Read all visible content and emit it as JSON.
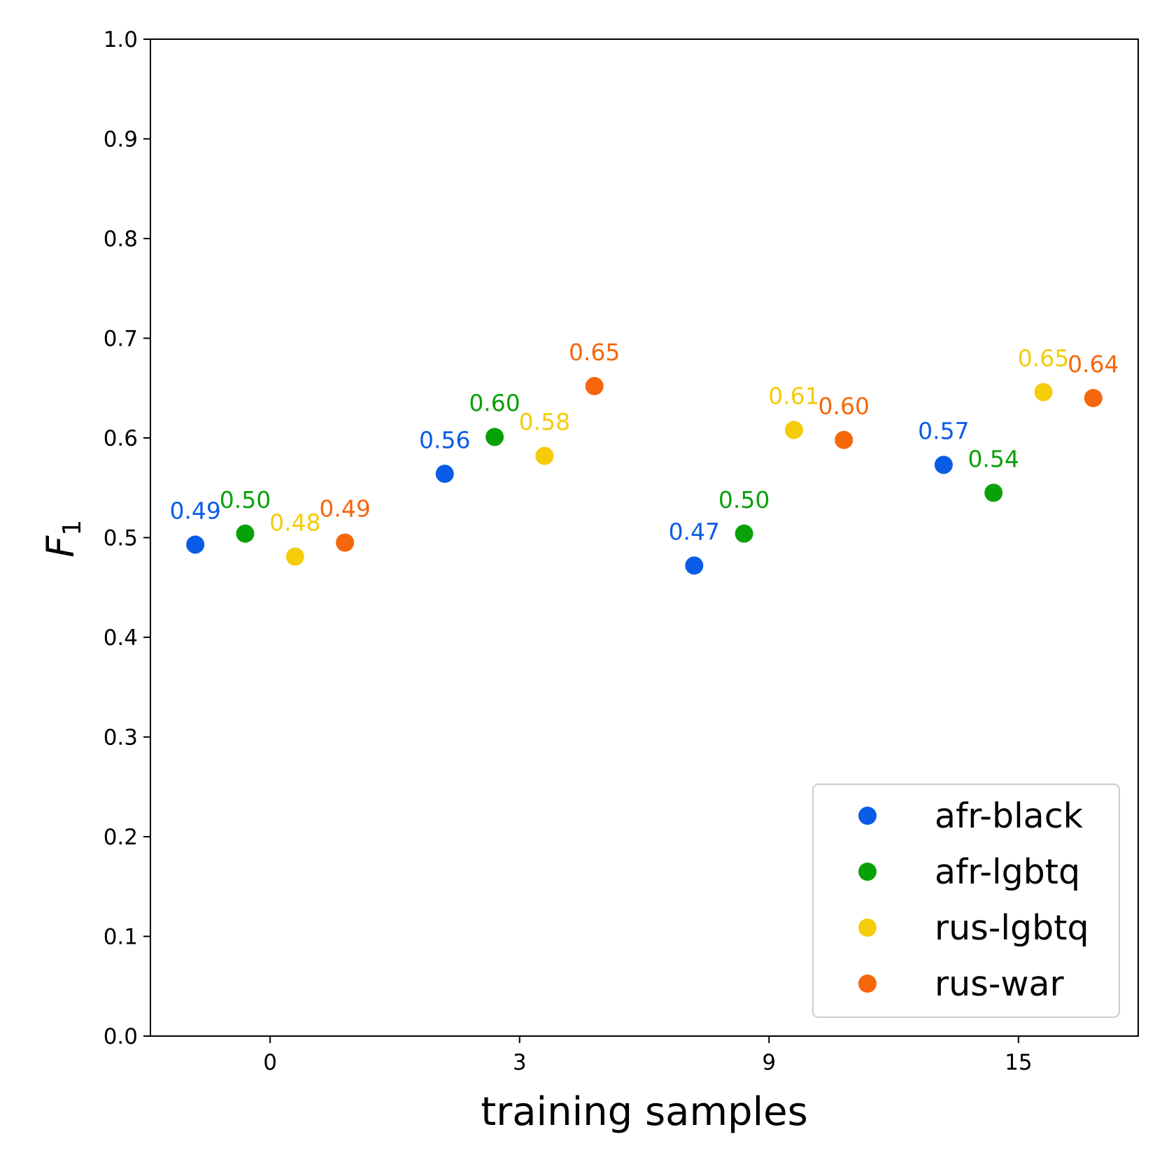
{
  "chart_data": {
    "type": "scatter",
    "title": "",
    "xlabel": "training samples",
    "ylabel": {
      "main": "F",
      "subscript": "1"
    },
    "ylim": [
      0.0,
      1.0
    ],
    "yticks": [
      "0.0",
      "0.1",
      "0.2",
      "0.3",
      "0.4",
      "0.5",
      "0.6",
      "0.7",
      "0.8",
      "0.9",
      "1.0"
    ],
    "categories": [
      "0",
      "3",
      "9",
      "15"
    ],
    "grid": false,
    "legend_position": "bottom-right",
    "series": [
      {
        "name": "afr-black",
        "color": "#0a5ce6",
        "values": [
          0.493,
          0.564,
          0.472,
          0.573
        ],
        "labels": [
          "0.49",
          "0.56",
          "0.47",
          "0.57"
        ]
      },
      {
        "name": "afr-lgbtq",
        "color": "#08a208",
        "values": [
          0.504,
          0.601,
          0.504,
          0.545
        ],
        "labels": [
          "0.50",
          "0.60",
          "0.50",
          "0.54"
        ]
      },
      {
        "name": "rus-lgbtq",
        "color": "#f5cc0a",
        "values": [
          0.481,
          0.582,
          0.608,
          0.646
        ],
        "labels": [
          "0.48",
          "0.58",
          "0.61",
          "0.65"
        ]
      },
      {
        "name": "rus-war",
        "color": "#f6660c",
        "values": [
          0.495,
          0.652,
          0.598,
          0.64
        ],
        "labels": [
          "0.49",
          "0.65",
          "0.60",
          "0.64"
        ]
      }
    ]
  }
}
